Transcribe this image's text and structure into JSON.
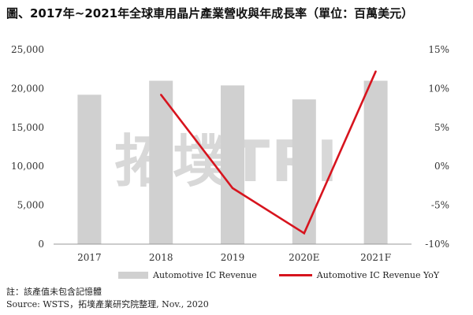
{
  "title": "圖、2017年~2021年全球車用晶片產業營收與年成長率（單位：百萬美元）",
  "watermark": "拓墣TRI",
  "legend": {
    "revenue_label": "Automotive IC Revenue",
    "yoy_label": "Automotive IC Revenue YoY"
  },
  "notes": {
    "note": "註：該產值未包含記憶體",
    "source": "Source: WSTS，拓墣產業研究院整理, Nov., 2020"
  },
  "colors": {
    "bar": "#d0d0d0",
    "line": "#d7141e"
  },
  "chart_data": {
    "type": "bar",
    "categories": [
      "2017",
      "2018",
      "2019",
      "2020E",
      "2021F"
    ],
    "series": [
      {
        "name": "Automotive IC Revenue",
        "type": "bar",
        "axis": "left",
        "values": [
          19200,
          21000,
          20400,
          18600,
          21000
        ]
      },
      {
        "name": "Automotive IC Revenue YoY",
        "type": "line",
        "axis": "right",
        "values": [
          null,
          9.2,
          -2.8,
          -8.6,
          12.2
        ]
      }
    ],
    "y_left": {
      "ticks": [
        "0",
        "5,000",
        "10,000",
        "15,000",
        "20,000",
        "25,000"
      ],
      "ylim": [
        0,
        25000
      ]
    },
    "y_right": {
      "ticks": [
        "-10%",
        "-5%",
        "0%",
        "5%",
        "10%",
        "15%"
      ],
      "ylim": [
        -10,
        15
      ]
    },
    "grid": false,
    "legend_position": "bottom"
  }
}
